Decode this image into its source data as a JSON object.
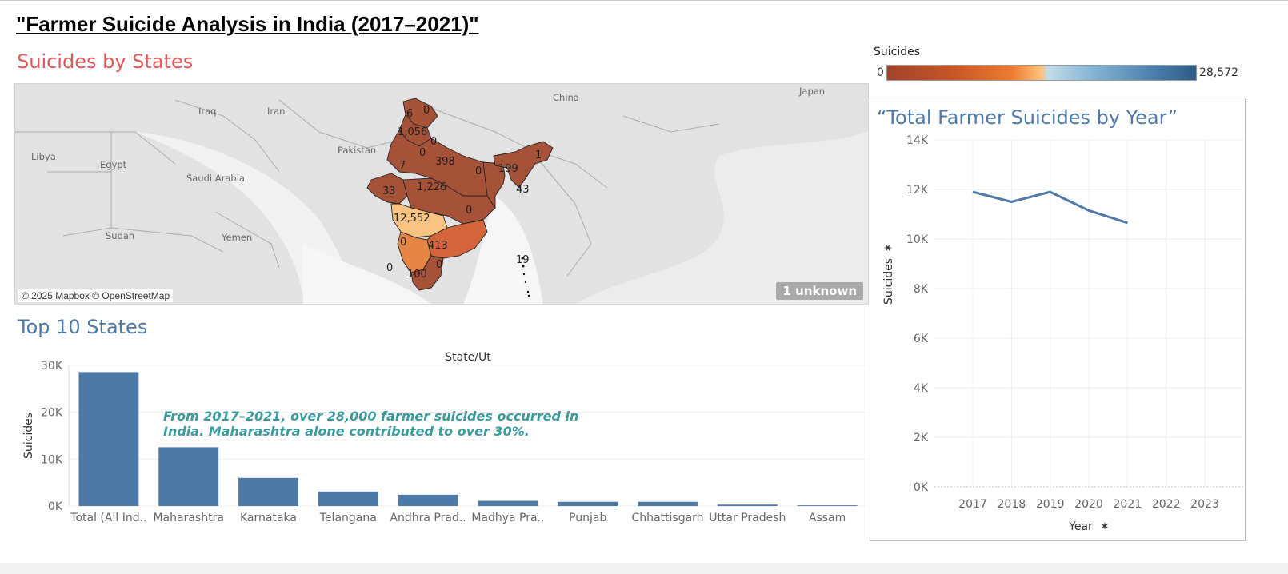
{
  "dashboard": {
    "title": "\"Farmer Suicide Analysis in India (2017–2021)\""
  },
  "map": {
    "title": "Suicides by States",
    "attribution": "© 2025 Mapbox © OpenStreetMap",
    "unknown_badge": "1 unknown",
    "country_labels": [
      "Iraq",
      "Iran",
      "Libya",
      "Egypt",
      "Saudi Arabia",
      "Pakistan",
      "China",
      "Japan",
      "Sudan",
      "Yemen"
    ],
    "state_values": [
      "6",
      "0",
      "1,056",
      "0",
      "0",
      "398",
      "7",
      "0",
      "199",
      "1",
      "1,226",
      "33",
      "43",
      "12,552",
      "0",
      "413",
      "0",
      "0",
      "0",
      "19",
      "100"
    ],
    "colors": {
      "low": "#a65238",
      "mid": "#d4643a",
      "orange": "#e68545",
      "high": "#f9c382",
      "border": "#222222"
    }
  },
  "legend": {
    "title": "Suicides",
    "min": "0",
    "max": "28,572"
  },
  "top10": {
    "title": "Top 10 States",
    "annotation": "From 2017–2021, over 28,000 farmer suicides occurred in India. Maharashtra alone contributed to over 30%."
  },
  "line_chart": {
    "title": "“Total Farmer Suicides by Year”"
  },
  "chart_data": [
    {
      "type": "bar",
      "title": "Top 10 States",
      "xlabel": "State/Ut",
      "ylabel": "Suicides",
      "categories": [
        "Total (All Ind..",
        "Maharashtra",
        "Karnataka",
        "Telangana",
        "Andhra Prad..",
        "Madhya Pra..",
        "Punjab",
        "Chhattisgarh",
        "Uttar Pradesh",
        "Assam"
      ],
      "values": [
        28572,
        12552,
        6000,
        3100,
        2400,
        1100,
        900,
        900,
        300,
        150
      ],
      "yticks": [
        0,
        10000,
        20000,
        30000
      ],
      "ytick_labels": [
        "0K",
        "10K",
        "20K",
        "30K"
      ],
      "ylim": [
        0,
        30000
      ],
      "color": "#4e79a7",
      "grid": true
    },
    {
      "type": "line",
      "title": "“Total Farmer Suicides by Year”",
      "xlabel": "Year",
      "ylabel": "Suicides",
      "x": [
        2017,
        2018,
        2019,
        2020,
        2021
      ],
      "y": [
        11900,
        11500,
        11900,
        11150,
        10650
      ],
      "xticks": [
        "2017",
        "2018",
        "2019",
        "2020",
        "2021",
        "2022",
        "2023"
      ],
      "yticks": [
        0,
        2000,
        4000,
        6000,
        8000,
        10000,
        12000,
        14000
      ],
      "ytick_labels": [
        "0K",
        "2K",
        "4K",
        "6K",
        "8K",
        "10K",
        "12K",
        "14K"
      ],
      "ylim": [
        0,
        14000
      ],
      "color": "#4e79a7",
      "grid": true
    }
  ]
}
